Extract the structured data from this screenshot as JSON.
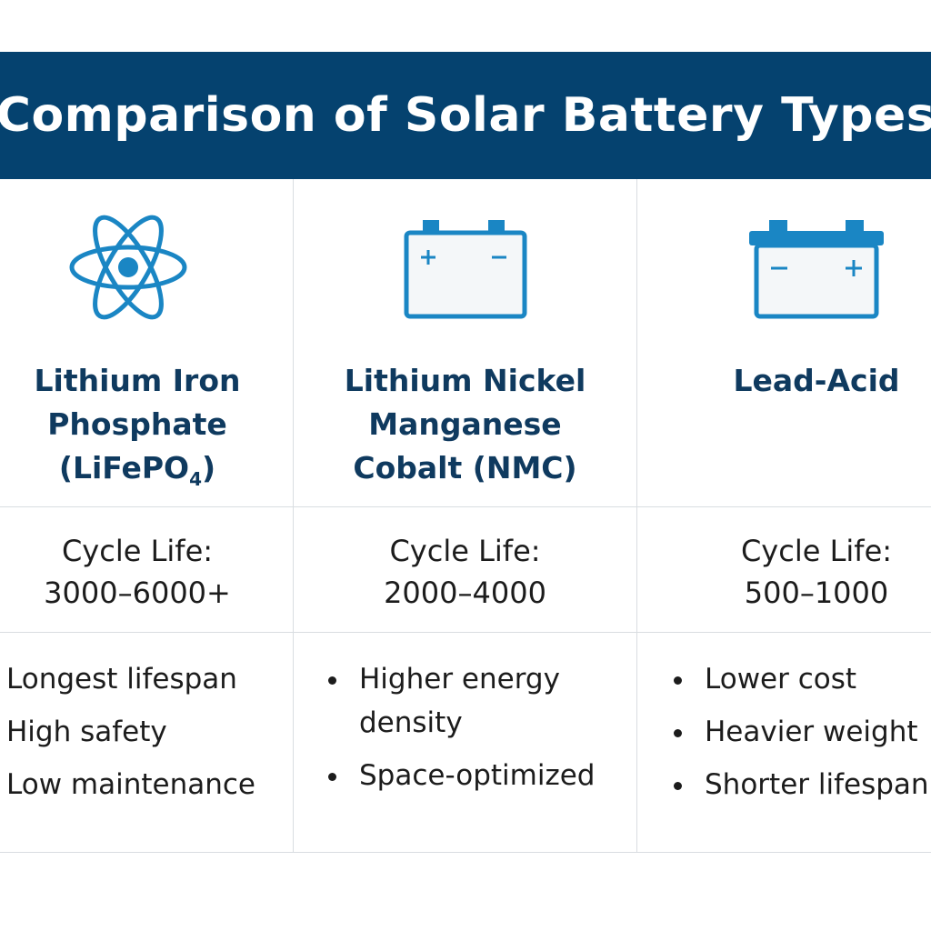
{
  "title": "Comparison of Solar Battery Types",
  "colors": {
    "header_bg": "#05426f",
    "accent_icon": "#1a86c4",
    "name_text": "#0f3a5f",
    "body_text": "#1c1c1c",
    "grid_line": "#d9dde1"
  },
  "columns": [
    {
      "icon": "atom-icon",
      "name_lines": [
        "Lithium Iron",
        "Phosphate",
        "(LiFePO"
      ],
      "name_subscript": "4",
      "name_suffix": ")",
      "cycle_label": "Cycle Life:",
      "cycle_value": "3000–6000+",
      "features": [
        "Longest lifespan",
        "High safety",
        "Low maintenance"
      ]
    },
    {
      "icon": "battery-icon",
      "name_lines": [
        "Lithium Nickel",
        "Manganese",
        "Cobalt (NMC)"
      ],
      "cycle_label": "Cycle Life:",
      "cycle_value": "2000–4000",
      "features": [
        "Higher energy",
        "density",
        "Space-optimized"
      ]
    },
    {
      "icon": "lead-acid-battery-icon",
      "name_lines": [
        "Lead-Acid"
      ],
      "cycle_label": "Cycle Life:",
      "cycle_value": "500–1000",
      "features": [
        "Lower cost",
        "Heavier weight",
        "Shorter lifespan"
      ]
    }
  ]
}
